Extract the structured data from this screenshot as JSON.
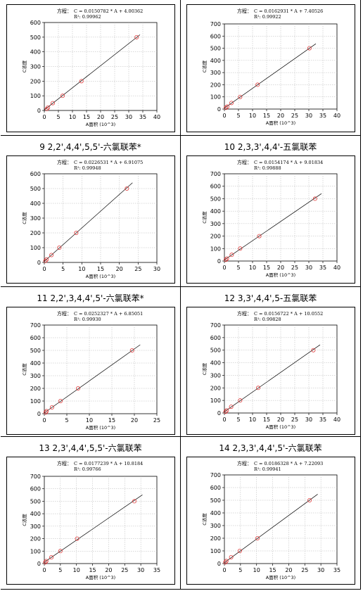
{
  "chart_data": [
    {
      "type": "scatter",
      "title": "",
      "equation_label": "方程：",
      "equation": "C = 0.0150782 * A + 4.00362",
      "r2": "R²: 0.99962",
      "xlabel": "A面积 (10^3)",
      "ylabel": "C浓度",
      "xlim": [
        0,
        40
      ],
      "ylim": [
        0,
        600
      ],
      "xticks": [
        "0",
        "5",
        "10",
        "15",
        "20",
        "25",
        "30",
        "35",
        "40"
      ],
      "yticks": [
        "0",
        "100",
        "200",
        "300",
        "400",
        "500",
        "600"
      ],
      "x": [
        0.9,
        1.3,
        3.0,
        6.5,
        13.2,
        32.8
      ],
      "y": [
        10,
        20,
        50,
        100,
        200,
        500
      ],
      "fit": {
        "slope": 15.0782,
        "intercept": 4.00362
      },
      "fit_x": [
        0,
        34
      ],
      "grid": true
    },
    {
      "type": "scatter",
      "title": "",
      "equation_label": "方程：",
      "equation": "C = 0.0162931 * A + 7.40526",
      "r2": "R²: 0.99922",
      "xlabel": "A面积 (10^3)",
      "ylabel": "C浓度",
      "xlim": [
        0,
        40
      ],
      "ylim": [
        0,
        700
      ],
      "xticks": [
        "0",
        "5",
        "10",
        "15",
        "20",
        "25",
        "30",
        "35",
        "40"
      ],
      "yticks": [
        "0",
        "100",
        "200",
        "300",
        "400",
        "500",
        "600",
        "700"
      ],
      "x": [
        0.5,
        1.0,
        2.5,
        5.6,
        11.8,
        30.2
      ],
      "y": [
        10,
        20,
        50,
        100,
        200,
        500
      ],
      "fit": {
        "slope": 16.2931,
        "intercept": 7.40526
      },
      "fit_x": [
        0,
        32.5
      ],
      "grid": true
    },
    {
      "type": "scatter",
      "title": "9   2,2',4,4',5,5'-六氯联苯*",
      "equation_label": "方程：",
      "equation": "C = 0.0226531 * A + 6.91075",
      "r2": "R²: 0.99948",
      "xlabel": "A面积 (10^3)",
      "ylabel": "C浓度",
      "xlim": [
        0,
        30
      ],
      "ylim": [
        0,
        600
      ],
      "xticks": [
        "0",
        "5",
        "10",
        "15",
        "20",
        "25",
        "30"
      ],
      "yticks": [
        "0",
        "100",
        "200",
        "300",
        "400",
        "500",
        "600"
      ],
      "x": [
        0.3,
        0.6,
        1.9,
        4.0,
        8.5,
        22.0
      ],
      "y": [
        10,
        20,
        50,
        100,
        200,
        500
      ],
      "fit": {
        "slope": 22.6531,
        "intercept": 6.91075
      },
      "fit_x": [
        0,
        23.5
      ],
      "grid": true
    },
    {
      "type": "scatter",
      "title": "10   2,3,3',4,4'-五氯联苯",
      "equation_label": "方程：",
      "equation": "C = 0.0154174 * A + 9.01834",
      "r2": "R²: 0.99888",
      "xlabel": "A面积 (10^3)",
      "ylabel": "C浓度",
      "xlim": [
        0,
        40
      ],
      "ylim": [
        0,
        700
      ],
      "xticks": [
        "0",
        "5",
        "10",
        "15",
        "20",
        "25",
        "30",
        "35",
        "40"
      ],
      "yticks": [
        "0",
        "100",
        "200",
        "300",
        "400",
        "500",
        "600",
        "700"
      ],
      "x": [
        0.5,
        0.9,
        2.6,
        5.6,
        12.4,
        32.2
      ],
      "y": [
        10,
        20,
        50,
        100,
        200,
        500
      ],
      "fit": {
        "slope": 15.4174,
        "intercept": 9.01834
      },
      "fit_x": [
        0,
        34.5
      ],
      "grid": true
    },
    {
      "type": "scatter",
      "title": "11   2,2',3,4,4',5'-六氯联苯*",
      "equation_label": "方程：",
      "equation": "C = 0.0252327 * A + 6.85051",
      "r2": "R²: 0.99930",
      "xlabel": "A面积 (10^3)",
      "ylabel": "C浓度",
      "xlim": [
        0,
        25
      ],
      "ylim": [
        0,
        700
      ],
      "xticks": [
        "0",
        "5",
        "10",
        "15",
        "20",
        "25"
      ],
      "yticks": [
        "0",
        "100",
        "200",
        "300",
        "400",
        "500",
        "600",
        "700"
      ],
      "x": [
        0.3,
        0.5,
        1.7,
        3.6,
        7.5,
        19.5
      ],
      "y": [
        10,
        20,
        50,
        100,
        200,
        500
      ],
      "fit": {
        "slope": 25.2327,
        "intercept": 6.85051
      },
      "fit_x": [
        0,
        21.3
      ],
      "grid": true
    },
    {
      "type": "scatter",
      "title": "12   3,3',4,4',5-五氯联苯",
      "equation_label": "方程：",
      "equation": "C = 0.0156722 * A + 10.0552",
      "r2": "R²: 0.99828",
      "xlabel": "A面积 (10^3)",
      "ylabel": "C浓度",
      "xlim": [
        0,
        40
      ],
      "ylim": [
        0,
        700
      ],
      "xticks": [
        "0",
        "5",
        "10",
        "15",
        "20",
        "25",
        "30",
        "35",
        "40"
      ],
      "yticks": [
        "0",
        "100",
        "200",
        "300",
        "400",
        "500",
        "600",
        "700"
      ],
      "x": [
        0.4,
        0.8,
        2.4,
        5.6,
        12.0,
        31.6
      ],
      "y": [
        10,
        20,
        50,
        100,
        200,
        500
      ],
      "fit": {
        "slope": 15.6722,
        "intercept": 10.0552
      },
      "fit_x": [
        0,
        34.0
      ],
      "grid": true
    },
    {
      "type": "scatter",
      "title": "13   2,3',4,4',5,5'-六氯联苯",
      "equation_label": "方程：",
      "equation": "C = 0.0177239 * A + 10.8184",
      "r2": "R²: 0.99766",
      "xlabel": "A面积 (10^3)",
      "ylabel": "C浓度",
      "xlim": [
        0,
        35
      ],
      "ylim": [
        0,
        700
      ],
      "xticks": [
        "0",
        "5",
        "10",
        "15",
        "20",
        "25",
        "30",
        "35"
      ],
      "yticks": [
        "0",
        "100",
        "200",
        "300",
        "400",
        "500",
        "600",
        "700"
      ],
      "x": [
        0.3,
        0.6,
        2.2,
        5.0,
        10.2,
        28.0
      ],
      "y": [
        10,
        20,
        50,
        100,
        200,
        500
      ],
      "fit": {
        "slope": 17.7239,
        "intercept": 10.8184
      },
      "fit_x": [
        0,
        30.5
      ],
      "grid": true
    },
    {
      "type": "scatter",
      "title": "14   2,3,3',4,4',5'-六氯联苯",
      "equation_label": "方程：",
      "equation": "C = 0.0186328 * A + 7.22093",
      "r2": "R²: 0.99941",
      "xlabel": "A面积 (10^3)",
      "ylabel": "C浓度",
      "xlim": [
        0,
        35
      ],
      "ylim": [
        0,
        700
      ],
      "xticks": [
        "0",
        "5",
        "10",
        "15",
        "20",
        "25",
        "30",
        "35"
      ],
      "yticks": [
        "0",
        "100",
        "200",
        "300",
        "400",
        "500",
        "600",
        "700"
      ],
      "x": [
        0.3,
        0.6,
        2.1,
        4.8,
        10.3,
        26.5
      ],
      "y": [
        10,
        20,
        50,
        100,
        200,
        500
      ],
      "fit": {
        "slope": 18.6328,
        "intercept": 7.22093
      },
      "fit_x": [
        0,
        29.0
      ],
      "grid": true
    }
  ]
}
